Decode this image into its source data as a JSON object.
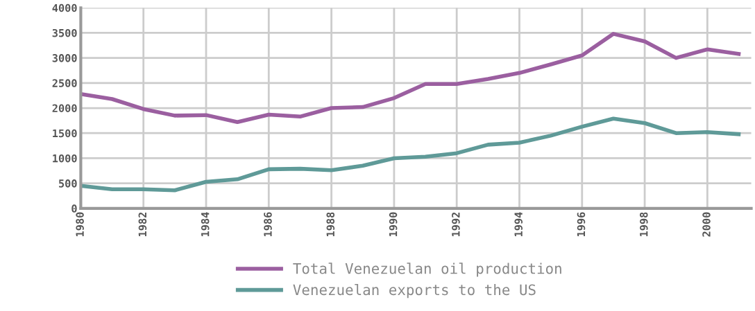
{
  "chart_data": {
    "type": "line",
    "x": [
      1980,
      1981,
      1982,
      1983,
      1984,
      1985,
      1986,
      1987,
      1988,
      1989,
      1990,
      1991,
      1992,
      1993,
      1994,
      1995,
      1996,
      1997,
      1998,
      1999,
      2000,
      2001
    ],
    "series": [
      {
        "name": "Total Venezuelan oil production",
        "color": "#9b5fa0",
        "values": [
          2280,
          2180,
          1980,
          1850,
          1860,
          1720,
          1870,
          1830,
          2000,
          2020,
          2200,
          2480,
          2480,
          2580,
          2700,
          2870,
          3050,
          3480,
          3330,
          3000,
          3170,
          3080
        ]
      },
      {
        "name": "Venezuelan exports to the US",
        "color": "#5f9a98",
        "values": [
          450,
          380,
          380,
          360,
          530,
          580,
          780,
          790,
          760,
          850,
          1000,
          1030,
          1100,
          1270,
          1310,
          1450,
          1630,
          1790,
          1700,
          1500,
          1520,
          1480
        ]
      }
    ],
    "xlim": [
      1980,
      2001.4
    ],
    "xticks": [
      1980,
      1982,
      1984,
      1986,
      1988,
      1990,
      1992,
      1994,
      1996,
      1998,
      2000
    ],
    "ylim": [
      0,
      4000
    ],
    "yticks": [
      0,
      500,
      1000,
      1500,
      2000,
      2500,
      3000,
      3500,
      4000
    ],
    "grid": true,
    "legend": "bottom",
    "marker": "none",
    "line_style": "solid"
  }
}
